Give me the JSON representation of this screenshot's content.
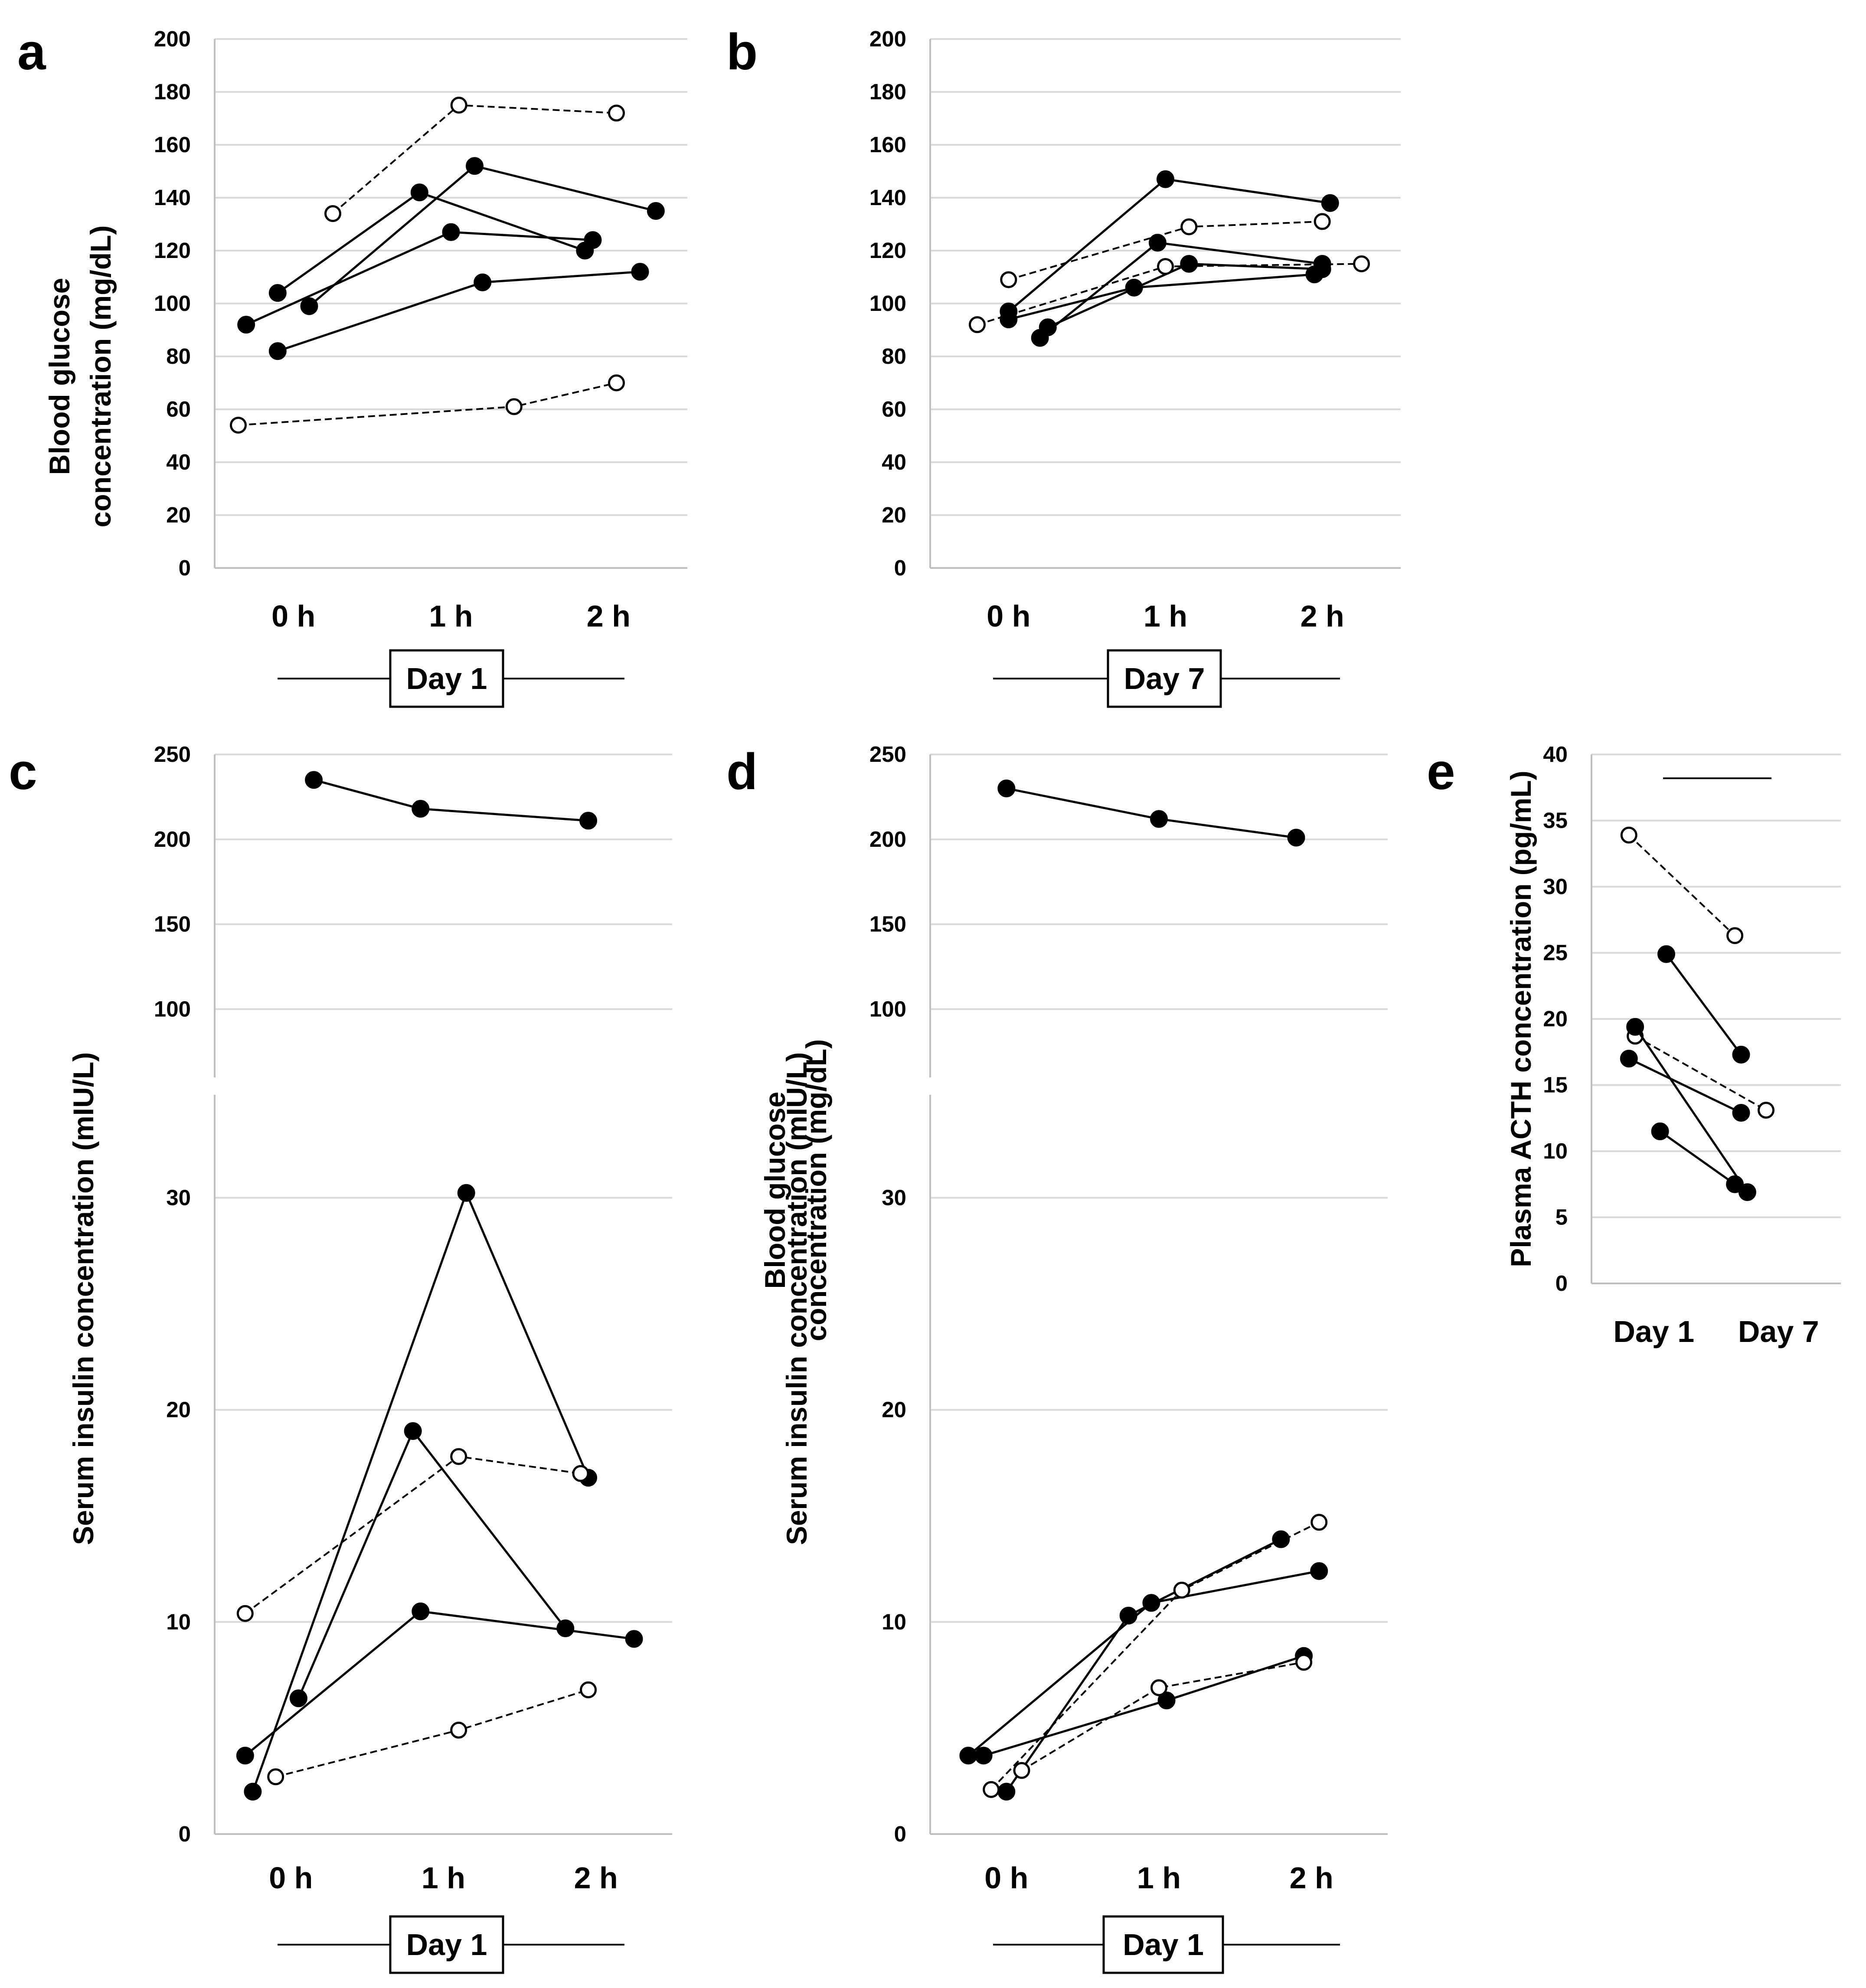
{
  "chart_data": [
    {
      "panel": "a",
      "type": "line",
      "ylabel": [
        "Blood glucose",
        "concentration (mg/dL)"
      ],
      "ylim": [
        0,
        200
      ],
      "yticks": [
        0,
        20,
        40,
        60,
        80,
        100,
        120,
        140,
        160,
        180,
        200
      ],
      "categories": [
        "0 h",
        "1 h",
        "2 h"
      ],
      "group_label": "Day 1",
      "legend": "none",
      "series": [
        {
          "style": "filled",
          "dashed": false,
          "x": [
            -0.1,
            0.8,
            1.85
          ],
          "values": [
            104,
            142,
            120
          ]
        },
        {
          "style": "filled",
          "dashed": false,
          "x": [
            0.1,
            1.15,
            2.3
          ],
          "values": [
            99,
            152,
            135
          ]
        },
        {
          "style": "filled",
          "dashed": false,
          "x": [
            -0.3,
            1.0,
            1.9
          ],
          "values": [
            92,
            127,
            124
          ]
        },
        {
          "style": "filled",
          "dashed": false,
          "x": [
            -0.1,
            1.2,
            2.2
          ],
          "values": [
            82,
            108,
            112
          ]
        },
        {
          "style": "open",
          "dashed": true,
          "x": [
            0.25,
            1.05,
            2.05
          ],
          "values": [
            134,
            175,
            172
          ]
        },
        {
          "style": "open",
          "dashed": true,
          "x": [
            -0.35,
            1.4,
            2.05
          ],
          "values": [
            54,
            61,
            70
          ]
        }
      ]
    },
    {
      "panel": "b",
      "type": "line",
      "ylabel": [
        "Blood glucose",
        "concentration (mg/dL)"
      ],
      "ylim": [
        0,
        200
      ],
      "yticks": [
        0,
        20,
        40,
        60,
        80,
        100,
        120,
        140,
        160,
        180,
        200
      ],
      "categories": [
        "0 h",
        "1 h",
        "2 h"
      ],
      "group_label": "Day 7",
      "legend": "none",
      "series": [
        {
          "style": "filled",
          "dashed": false,
          "x": [
            0.0,
            1.0,
            2.05
          ],
          "values": [
            97,
            147,
            138
          ]
        },
        {
          "style": "filled",
          "dashed": false,
          "x": [
            0.0,
            0.8,
            1.95
          ],
          "values": [
            94,
            106,
            111
          ]
        },
        {
          "style": "filled",
          "dashed": false,
          "x": [
            0.2,
            0.95,
            2.0
          ],
          "values": [
            87,
            123,
            115
          ]
        },
        {
          "style": "filled",
          "dashed": false,
          "x": [
            0.25,
            1.15,
            2.0
          ],
          "values": [
            91,
            115,
            113
          ]
        },
        {
          "style": "open",
          "dashed": true,
          "x": [
            0.0,
            1.15,
            2.0
          ],
          "values": [
            109,
            129,
            131
          ]
        },
        {
          "style": "open",
          "dashed": true,
          "x": [
            -0.2,
            1.0,
            2.25
          ],
          "values": [
            92,
            114,
            115
          ]
        }
      ]
    },
    {
      "panel": "c",
      "type": "line",
      "ylabel": [
        "Serum insulin concentration (mIU/L)"
      ],
      "yscale": "broken",
      "ylim": [
        0,
        250
      ],
      "yticks": [
        0,
        10,
        20,
        30,
        100,
        150,
        200,
        250
      ],
      "categories": [
        "0 h",
        "1 h",
        "2 h"
      ],
      "group_label": "Day 1",
      "legend": "none",
      "series": [
        {
          "style": "filled",
          "dashed": false,
          "x": [
            0.15,
            0.85,
            1.95
          ],
          "values": [
            235,
            218,
            211
          ]
        },
        {
          "style": "filled",
          "dashed": false,
          "x": [
            -0.25,
            1.15,
            1.95
          ],
          "values": [
            2.0,
            31.8,
            16.8
          ]
        },
        {
          "style": "filled",
          "dashed": false,
          "x": [
            0.05,
            0.8,
            1.8
          ],
          "values": [
            6.4,
            19.0,
            9.7
          ]
        },
        {
          "style": "filled",
          "dashed": false,
          "x": [
            -0.3,
            0.85,
            2.25
          ],
          "values": [
            3.7,
            10.5,
            9.2
          ]
        },
        {
          "style": "open",
          "dashed": true,
          "x": [
            -0.3,
            1.1,
            1.9
          ],
          "values": [
            10.4,
            17.8,
            17.0
          ]
        },
        {
          "style": "open",
          "dashed": true,
          "x": [
            -0.1,
            1.1,
            1.95
          ],
          "values": [
            2.7,
            4.9,
            6.8
          ]
        }
      ]
    },
    {
      "panel": "d",
      "type": "line",
      "ylabel": [
        "Serum insulin concentration (mIU/L)"
      ],
      "yscale": "broken",
      "ylim": [
        0,
        250
      ],
      "yticks": [
        0,
        10,
        20,
        30,
        100,
        150,
        200,
        250
      ],
      "categories": [
        "0 h",
        "1 h",
        "2 h"
      ],
      "group_label": "Day 1",
      "legend": "none",
      "series": [
        {
          "style": "filled",
          "dashed": false,
          "x": [
            0.0,
            1.0,
            1.9
          ],
          "values": [
            230,
            212,
            201
          ]
        },
        {
          "style": "filled",
          "dashed": false,
          "x": [
            -0.25,
            0.95,
            2.05
          ],
          "values": [
            3.7,
            10.9,
            12.4
          ]
        },
        {
          "style": "filled",
          "dashed": false,
          "x": [
            0.0,
            0.8,
            1.8
          ],
          "values": [
            2.0,
            10.3,
            13.9
          ]
        },
        {
          "style": "filled",
          "dashed": false,
          "x": [
            -0.15,
            1.05,
            1.95
          ],
          "values": [
            3.7,
            6.3,
            8.4
          ]
        },
        {
          "style": "open",
          "dashed": true,
          "x": [
            -0.1,
            1.15,
            2.05
          ],
          "values": [
            2.1,
            11.5,
            14.7
          ]
        },
        {
          "style": "open",
          "dashed": true,
          "x": [
            0.1,
            1.0,
            1.95
          ],
          "values": [
            3.0,
            6.9,
            8.1
          ]
        }
      ]
    },
    {
      "panel": "e",
      "type": "line",
      "ylabel": [
        "Plasma ACTH concentration (pg/mL)"
      ],
      "ylim": [
        0,
        40
      ],
      "yticks": [
        0,
        5,
        10,
        15,
        20,
        25,
        30,
        35,
        40
      ],
      "categories": [
        "Day 1",
        "Day 7"
      ],
      "group_label": "",
      "legend": "none",
      "series": [
        {
          "style": "open",
          "dashed": true,
          "x": [
            -0.2,
            0.65
          ],
          "values": [
            33.9,
            26.3
          ]
        },
        {
          "style": "filled",
          "dashed": false,
          "x": [
            0.1,
            0.7
          ],
          "values": [
            24.9,
            17.3
          ]
        },
        {
          "style": "open",
          "dashed": true,
          "x": [
            -0.15,
            0.9
          ],
          "values": [
            18.7,
            13.1
          ]
        },
        {
          "style": "filled",
          "dashed": false,
          "x": [
            -0.2,
            0.7
          ],
          "values": [
            17.0,
            12.9
          ]
        },
        {
          "style": "filled",
          "dashed": false,
          "x": [
            -0.15,
            0.75
          ],
          "values": [
            19.4,
            6.9
          ]
        },
        {
          "style": "filled",
          "dashed": false,
          "x": [
            0.05,
            0.65
          ],
          "values": [
            11.5,
            7.5
          ]
        }
      ]
    }
  ]
}
